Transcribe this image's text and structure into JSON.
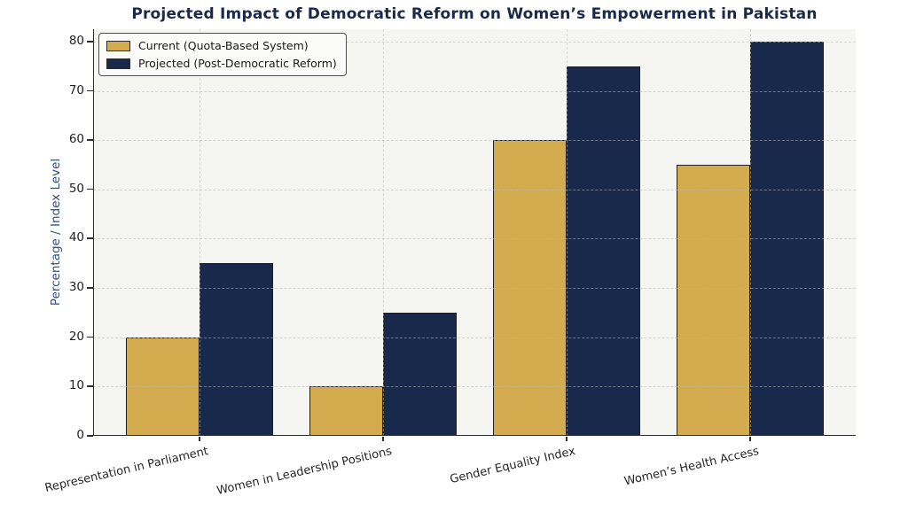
{
  "title": "Projected Impact of Democratic Reform on Women’s Empowerment in Pakistan",
  "chart_data": {
    "type": "bar",
    "categories": [
      "Representation in Parliament",
      "Women in Leadership Positions",
      "Gender Equality Index",
      "Women’s Health Access"
    ],
    "series": [
      {
        "name": "Current (Quota-Based System)",
        "color": "#d2ac4e",
        "values": [
          20,
          10,
          60,
          55
        ]
      },
      {
        "name": "Projected (Post-Democratic Reform)",
        "color": "#18294b",
        "values": [
          35,
          25,
          75,
          80
        ]
      }
    ],
    "xlabel": "",
    "ylabel": "Percentage / Index Level",
    "ylim": [
      0,
      82.5
    ],
    "yticks": [
      0,
      10,
      20,
      30,
      40,
      50,
      60,
      70,
      80
    ],
    "grid": "dashed horizontal and vertical",
    "legend_position": "upper left"
  },
  "colors": {
    "title_text": "#1b2a4a",
    "ylabel_text": "#2e4d7b",
    "tick_text": "#212121",
    "bar_edge": "#1f1f1f",
    "plot_background": "#f5f5f2",
    "figure_background": "#ffffff",
    "gridline": "#bcbcbc",
    "spine": "#2f2f2f"
  }
}
